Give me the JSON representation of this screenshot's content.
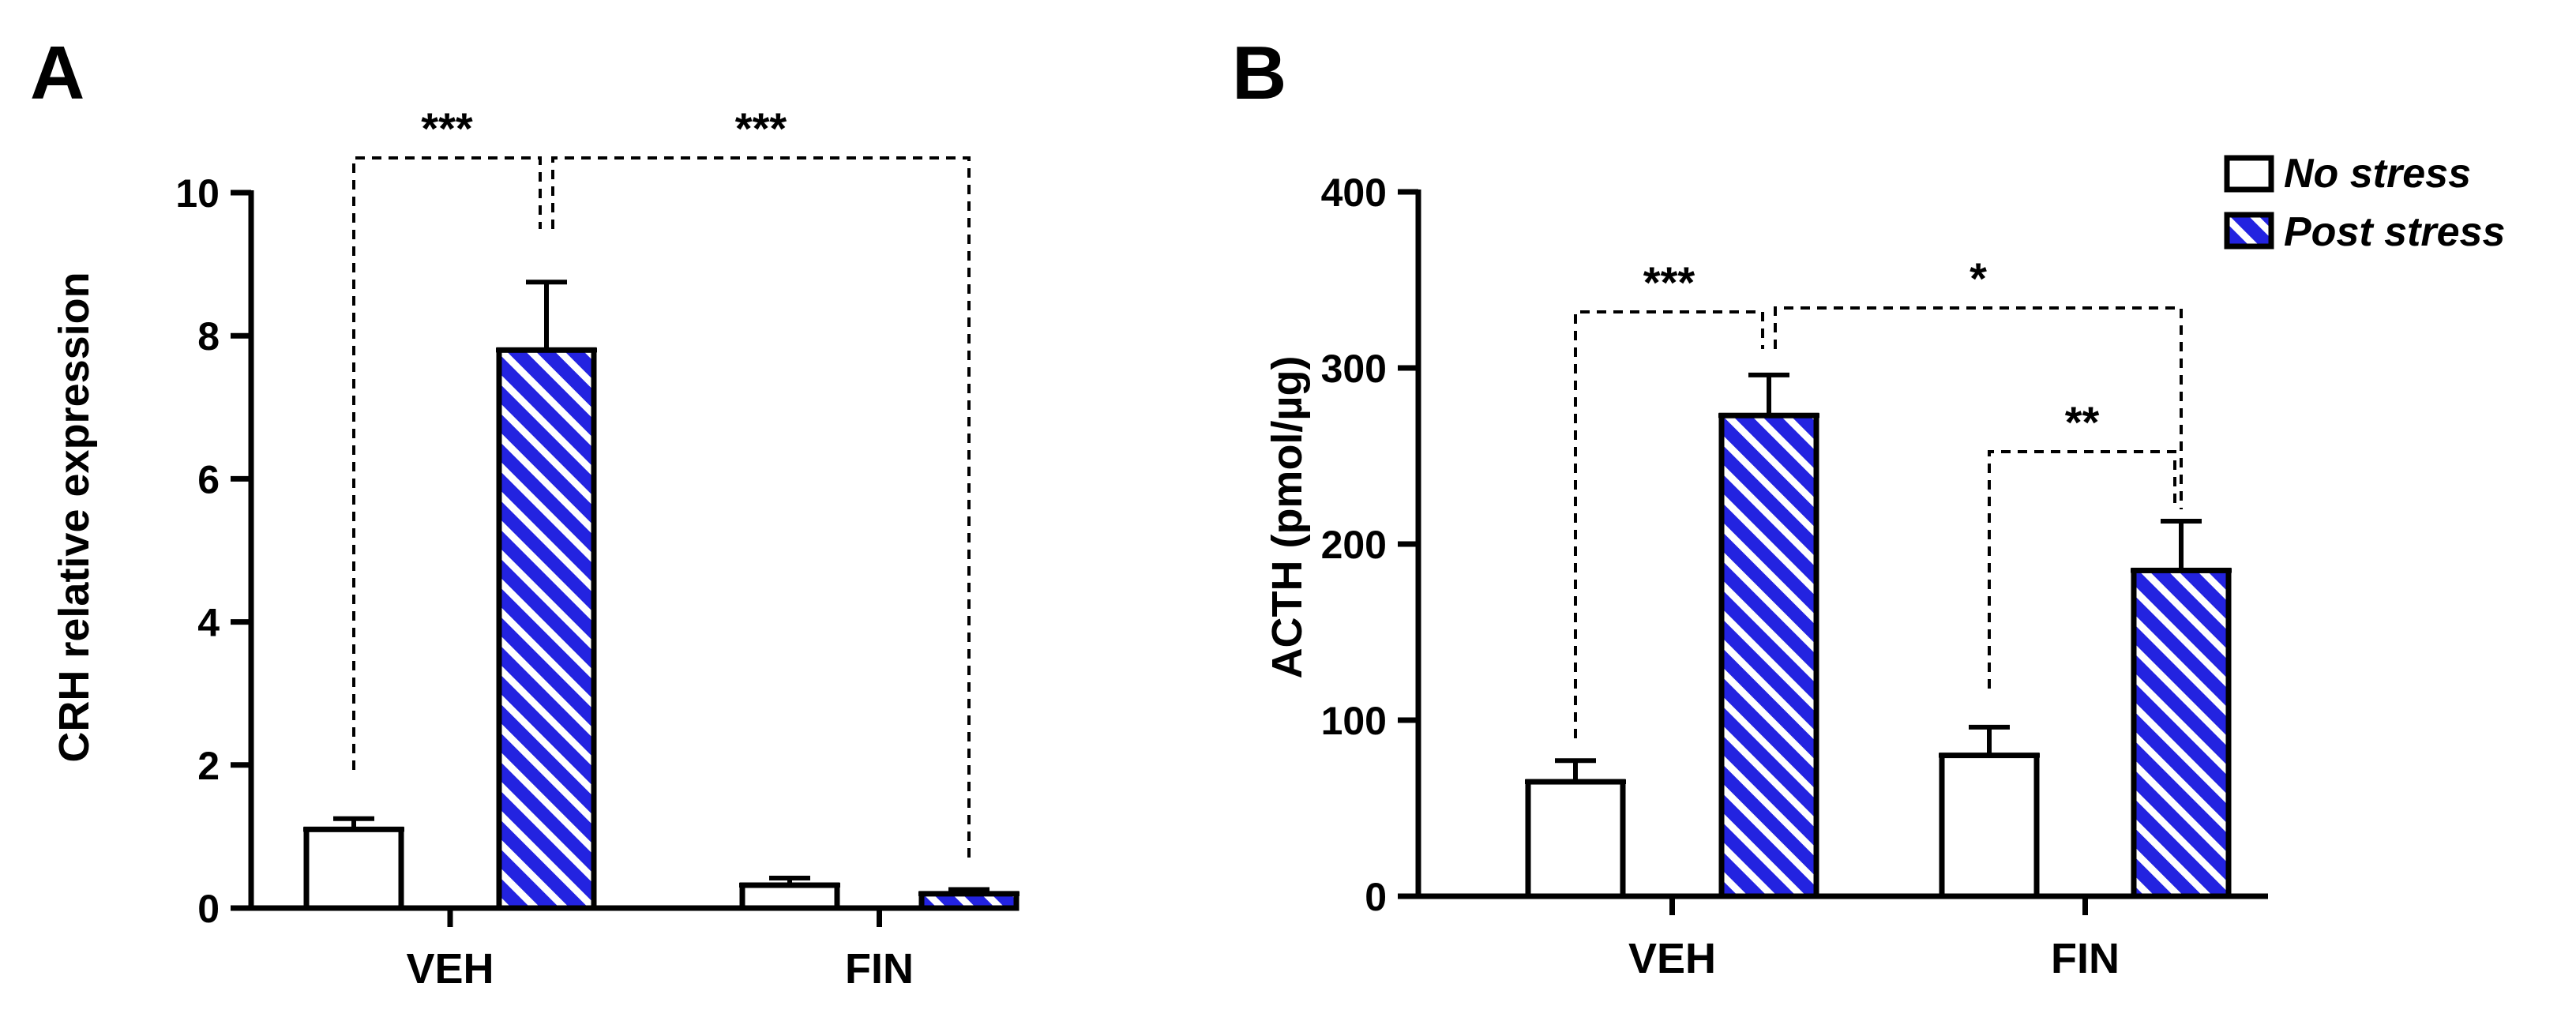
{
  "panels": [
    {
      "id": "A",
      "label": "A",
      "ylabel": "CRH relative expression",
      "yticks": [
        "0",
        "2",
        "4",
        "6",
        "8",
        "10"
      ]
    },
    {
      "id": "B",
      "label": "B",
      "ylabel": "ACTH (pmol/µg)",
      "yticks": [
        "0",
        "100",
        "200",
        "300",
        "400"
      ]
    }
  ],
  "legend": {
    "no_stress": "No stress",
    "post_stress": "Post stress"
  },
  "colors": {
    "post_stress_fill": "#2323e0",
    "post_stress_hatch": "#ffffff",
    "no_stress_fill": "#ffffff"
  },
  "chart_data": [
    {
      "type": "bar",
      "panel": "A",
      "title": "",
      "xlabel": "",
      "ylabel": "CRH relative expression",
      "categories": [
        "VEH",
        "FIN"
      ],
      "ylim": [
        0,
        10
      ],
      "yticks": [
        0,
        2,
        4,
        6,
        8,
        10
      ],
      "series": [
        {
          "name": "No stress",
          "values": [
            1.1,
            0.32
          ],
          "errors": [
            0.15,
            0.1
          ]
        },
        {
          "name": "Post stress",
          "values": [
            7.8,
            0.2
          ],
          "errors": [
            0.95,
            0.06
          ]
        }
      ],
      "significance": [
        {
          "from": "VEH No stress",
          "to": "VEH Post stress",
          "label": "***"
        },
        {
          "from": "VEH Post stress",
          "to": "FIN Post stress",
          "label": "***"
        }
      ]
    },
    {
      "type": "bar",
      "panel": "B",
      "title": "",
      "xlabel": "",
      "ylabel": "ACTH (pmol/µg)",
      "categories": [
        "VEH",
        "FIN"
      ],
      "ylim": [
        0,
        400
      ],
      "yticks": [
        0,
        100,
        200,
        300,
        400
      ],
      "series": [
        {
          "name": "No stress",
          "values": [
            65,
            80
          ],
          "errors": [
            12,
            16
          ]
        },
        {
          "name": "Post stress",
          "values": [
            273,
            185
          ],
          "errors": [
            23,
            28
          ]
        }
      ],
      "significance": [
        {
          "from": "VEH No stress",
          "to": "VEH Post stress",
          "label": "***"
        },
        {
          "from": "VEH Post stress",
          "to": "FIN Post stress",
          "label": "*"
        },
        {
          "from": "FIN No stress",
          "to": "FIN Post stress",
          "label": "**"
        }
      ]
    }
  ]
}
